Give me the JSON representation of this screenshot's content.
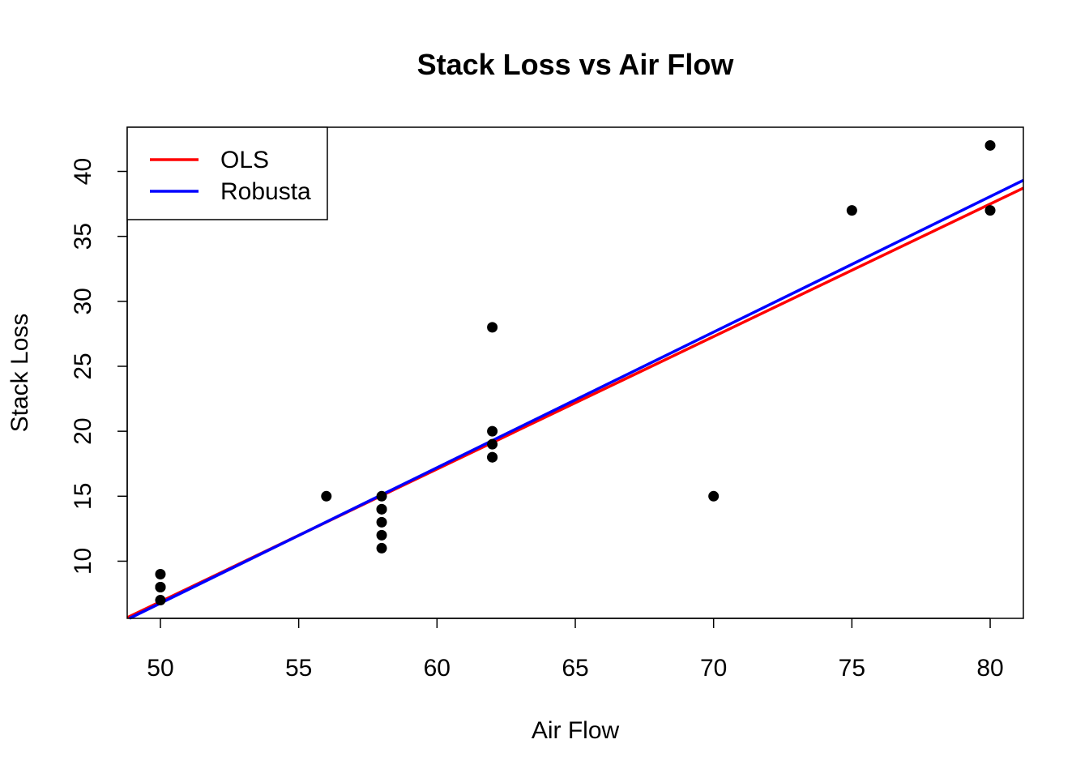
{
  "chart_data": {
    "type": "scatter",
    "title": "Stack Loss vs Air Flow",
    "xlabel": "Air Flow",
    "ylabel": "Stack Loss",
    "xlim": [
      48.8,
      81.2
    ],
    "ylim": [
      5.6,
      43.4
    ],
    "x_ticks": [
      50,
      55,
      60,
      65,
      70,
      75,
      80
    ],
    "y_ticks": [
      10,
      15,
      20,
      25,
      30,
      35,
      40
    ],
    "grid": false,
    "legend_position": "top-left",
    "points": {
      "color": "#000000",
      "x": [
        80,
        80,
        75,
        62,
        62,
        62,
        62,
        62,
        58,
        58,
        58,
        58,
        58,
        58,
        50,
        50,
        50,
        50,
        50,
        56,
        70
      ],
      "y": [
        42,
        37,
        37,
        28,
        18,
        18,
        19,
        20,
        15,
        14,
        14,
        13,
        11,
        12,
        8,
        7,
        8,
        8,
        9,
        15,
        15
      ]
    },
    "series": [
      {
        "name": "OLS",
        "type": "line",
        "color": "#ff0000",
        "intercept": -44.13,
        "slope": 1.0203
      },
      {
        "name": "Robusta",
        "type": "line",
        "color": "#0000ff",
        "intercept": -45.4,
        "slope": 1.0433
      }
    ]
  }
}
